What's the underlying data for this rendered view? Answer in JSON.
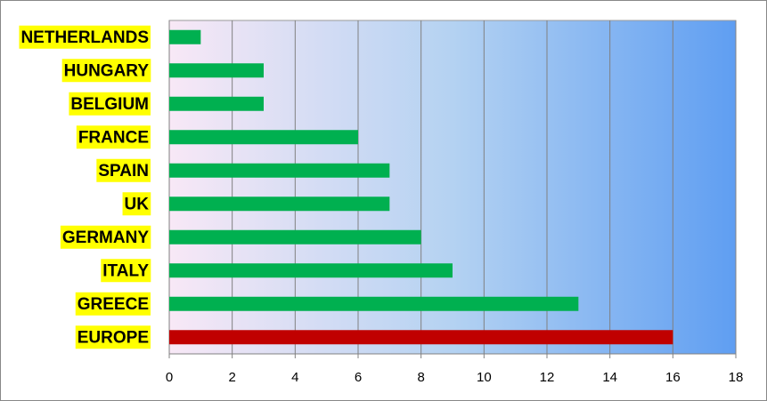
{
  "chart_data": {
    "type": "bar",
    "orientation": "horizontal",
    "categories": [
      "NETHERLANDS",
      "HUNGARY",
      "BELGIUM",
      "FRANCE",
      "SPAIN",
      "UK",
      "GERMANY",
      "ITALY",
      "GREECE",
      "EUROPE"
    ],
    "values": [
      1,
      3,
      3,
      6,
      7,
      7,
      8,
      9,
      13,
      16
    ],
    "colors": [
      "#00b050",
      "#00b050",
      "#00b050",
      "#00b050",
      "#00b050",
      "#00b050",
      "#00b050",
      "#00b050",
      "#00b050",
      "#c00000"
    ],
    "label_background": "#ffff00",
    "xlim": [
      0,
      18
    ],
    "xticks": [
      0,
      2,
      4,
      6,
      8,
      10,
      12,
      14,
      16,
      18
    ],
    "grid": true
  }
}
